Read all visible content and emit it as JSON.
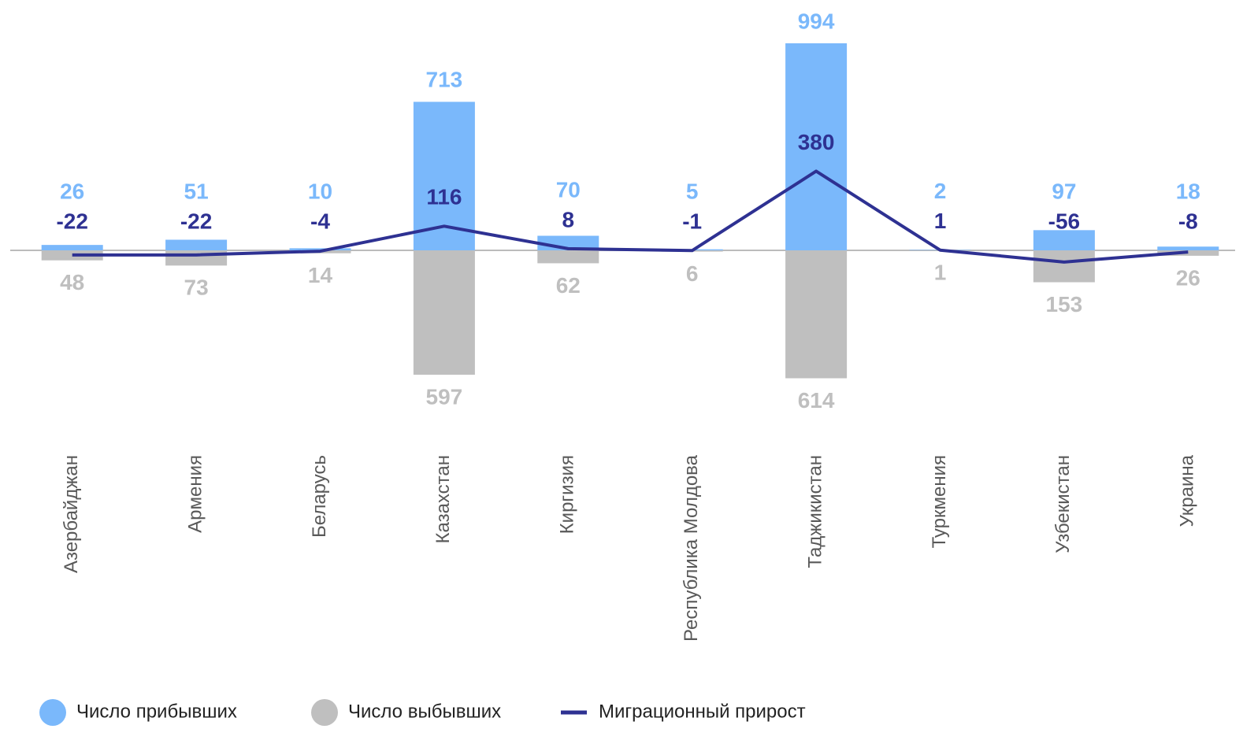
{
  "chart_data": {
    "type": "bar",
    "categories": [
      "Азербайджан",
      "Армения",
      "Беларусь",
      "Казахстан",
      "Киргизия",
      "Республика Молдова",
      "Таджикистан",
      "Туркмения",
      "Узбекистан",
      "Украина"
    ],
    "series": [
      {
        "name": "Число прибывших",
        "color": "#7ab8fb",
        "values": [
          26,
          51,
          10,
          713,
          70,
          5,
          994,
          2,
          97,
          18
        ]
      },
      {
        "name": "Число выбывших",
        "color": "#bfbfbf",
        "direction": "down",
        "values": [
          48,
          73,
          14,
          597,
          62,
          6,
          614,
          1,
          153,
          26
        ]
      },
      {
        "name": "Миграционный прирост",
        "color": "#2e3192",
        "type": "line",
        "values": [
          -22,
          -22,
          -4,
          116,
          8,
          -1,
          380,
          1,
          -56,
          -8
        ]
      }
    ],
    "ylim": [
      -1000,
      1200
    ]
  }
}
